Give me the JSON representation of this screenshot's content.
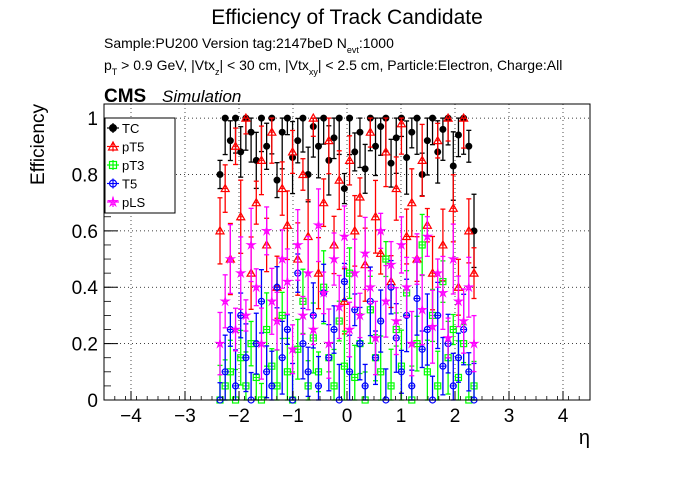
{
  "chart_data": {
    "type": "scatter",
    "title": "Efficiency of Track Candidate",
    "info_line1": {
      "prefix": "Sample:PU200   Version tag:2147beD  N",
      "sub": "evt",
      "suffix": ":1000"
    },
    "info_line2": {
      "p": "p",
      "p_sub": "T",
      "part1": " > 0.9 GeV, |Vtx",
      "z_sub": "z",
      "part2": "| < 30 cm, |Vtx",
      "xy_sub": "xy",
      "part3": "| < 2.5 cm, Particle:Electron, Charge:All"
    },
    "cms_label": "CMS",
    "simulation_label": "Simulation",
    "xlabel": "η",
    "ylabel": "Efficiency",
    "xlim": [
      -4.5,
      4.5
    ],
    "ylim": [
      0,
      1.05
    ],
    "xticks": [
      -4,
      -3,
      -2,
      -1,
      0,
      1,
      2,
      3,
      4
    ],
    "xtick_labels": [
      "−4",
      "−3",
      "−2",
      "−1",
      "0",
      "1",
      "2",
      "3",
      "4"
    ],
    "yticks": [
      0,
      0.2,
      0.4,
      0.6,
      0.8,
      1
    ],
    "ytick_labels": [
      "0",
      "0.2",
      "0.4",
      "0.6",
      "0.8",
      "1"
    ],
    "grid": true,
    "legend_position": "top-left",
    "x_range_filled": [
      -2.4,
      2.4
    ],
    "n_bins": 50,
    "series": [
      {
        "name": "TC",
        "color": "#000000",
        "marker": "filled-circle",
        "values": [
          0.8,
          1.0,
          0.92,
          1.0,
          0.88,
          1.0,
          0.95,
          0.85,
          1.0,
          0.9,
          1.0,
          0.78,
          0.95,
          1.0,
          0.86,
          0.92,
          1.0,
          0.8,
          0.97,
          0.9,
          1.0,
          0.85,
          0.93,
          1.0,
          0.75,
          1.0,
          0.88,
          0.95,
          0.82,
          1.0,
          0.9,
          0.97,
          1.0,
          0.84,
          0.93,
          1.0,
          0.86,
          0.95,
          1.0,
          0.8,
          0.92,
          1.0,
          0.88,
          0.96,
          1.0,
          0.83,
          0.94,
          1.0,
          0.9,
          0.6
        ]
      },
      {
        "name": "pT5",
        "color": "#ff0000",
        "marker": "open-triangle",
        "values": [
          0.6,
          0.75,
          0.5,
          0.9,
          0.65,
          1.0,
          0.45,
          0.7,
          0.85,
          0.55,
          0.95,
          0.4,
          0.75,
          0.62,
          0.88,
          0.5,
          0.8,
          0.58,
          1.0,
          0.45,
          0.7,
          0.92,
          0.55,
          0.78,
          0.35,
          0.85,
          0.6,
          0.72,
          0.48,
          0.95,
          0.65,
          0.52,
          0.88,
          0.42,
          0.75,
          0.98,
          0.58,
          0.7,
          0.5,
          0.85,
          0.62,
          0.45,
          0.92,
          0.55,
          1.0,
          0.68,
          0.4,
          1.0,
          0.6,
          0.45
        ]
      },
      {
        "name": "pT3",
        "color": "#00ff00",
        "marker": "open-square",
        "values": [
          0.0,
          0.05,
          0.1,
          0.0,
          0.15,
          0.05,
          0.2,
          0.08,
          0.0,
          0.25,
          0.12,
          0.05,
          0.3,
          0.1,
          0.0,
          0.18,
          0.35,
          0.05,
          0.22,
          0.1,
          0.4,
          0.15,
          0.05,
          0.28,
          0.12,
          0.45,
          0.08,
          0.2,
          0.0,
          0.32,
          0.15,
          0.1,
          0.5,
          0.05,
          0.25,
          0.12,
          0.38,
          0.0,
          0.2,
          0.55,
          0.1,
          0.3,
          0.05,
          0.42,
          0.15,
          0.25,
          0.08,
          0.2,
          0.0,
          0.05
        ]
      },
      {
        "name": "T5",
        "color": "#0000ff",
        "marker": "open-circle",
        "values": [
          0.0,
          0.1,
          0.25,
          0.05,
          0.3,
          0.15,
          0.0,
          0.2,
          0.35,
          0.1,
          0.05,
          0.4,
          0.15,
          0.25,
          0.0,
          0.45,
          0.2,
          0.1,
          0.3,
          0.05,
          0.38,
          0.15,
          0.25,
          0.0,
          0.42,
          0.1,
          0.32,
          0.2,
          0.05,
          0.35,
          0.15,
          0.28,
          0.0,
          0.4,
          0.22,
          0.1,
          0.3,
          0.05,
          0.36,
          0.18,
          0.25,
          0.0,
          0.3,
          0.12,
          0.2,
          0.05,
          0.15,
          0.25,
          0.1,
          0.0
        ]
      },
      {
        "name": "pLS",
        "color": "#ff00ff",
        "marker": "open-star",
        "values": [
          0.2,
          0.35,
          0.5,
          0.25,
          0.45,
          0.3,
          0.55,
          0.4,
          0.2,
          0.6,
          0.35,
          0.28,
          0.5,
          0.42,
          0.18,
          0.55,
          0.3,
          0.45,
          0.25,
          0.62,
          0.38,
          0.2,
          0.5,
          0.33,
          0.58,
          0.25,
          0.45,
          0.3,
          0.52,
          0.4,
          0.22,
          0.6,
          0.35,
          0.48,
          0.28,
          0.55,
          0.4,
          0.2,
          0.5,
          0.32,
          0.58,
          0.26,
          0.45,
          0.38,
          0.22,
          0.5,
          0.35,
          0.28,
          0.4,
          0.2
        ]
      }
    ]
  }
}
